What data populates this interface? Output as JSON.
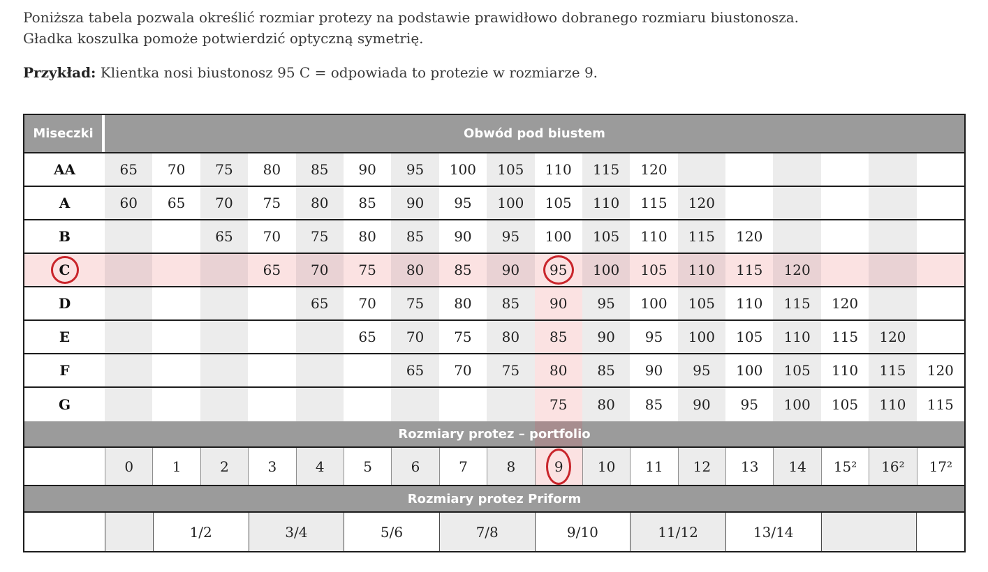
{
  "intro": {
    "line1": "Poniższa tabela pozwala określić rozmiar protezy na podstawie prawidłowo dobranego rozmiaru biustonosza.",
    "line2": "Gładka koszulka pomoże potwierdzić optyczną symetrię.",
    "example_label": "Przykład:",
    "example_text": " Klientka nosi biustonosz 95 C = odpowiada to protezie w rozmiarze 9."
  },
  "table": {
    "cup_header": "Miseczki",
    "band_header": "Obwód pod biustem",
    "columns": 18,
    "highlight_column_index": 9,
    "cup_rows": [
      {
        "cup": "AA",
        "cells": [
          "65",
          "70",
          "75",
          "80",
          "85",
          "90",
          "95",
          "100",
          "105",
          "110",
          "115",
          "120",
          "",
          "",
          "",
          "",
          "",
          ""
        ]
      },
      {
        "cup": "A",
        "cells": [
          "60",
          "65",
          "70",
          "75",
          "80",
          "85",
          "90",
          "95",
          "100",
          "105",
          "110",
          "115",
          "120",
          "",
          "",
          "",
          "",
          ""
        ]
      },
      {
        "cup": "B",
        "cells": [
          "",
          "",
          "65",
          "70",
          "75",
          "80",
          "85",
          "90",
          "95",
          "100",
          "105",
          "110",
          "115",
          "120",
          "",
          "",
          "",
          ""
        ]
      },
      {
        "cup": "C",
        "cells": [
          "",
          "",
          "",
          "65",
          "70",
          "75",
          "80",
          "85",
          "90",
          "95",
          "100",
          "105",
          "110",
          "115",
          "120",
          "",
          "",
          ""
        ],
        "row_highlight": true,
        "col_highlight": true,
        "cup_circled": true,
        "circled_cell_index": 9
      },
      {
        "cup": "D",
        "cells": [
          "",
          "",
          "",
          "",
          "65",
          "70",
          "75",
          "80",
          "85",
          "90",
          "95",
          "100",
          "105",
          "110",
          "115",
          "120",
          "",
          ""
        ],
        "col_highlight": true
      },
      {
        "cup": "E",
        "cells": [
          "",
          "",
          "",
          "",
          "",
          "65",
          "70",
          "75",
          "80",
          "85",
          "90",
          "95",
          "100",
          "105",
          "110",
          "115",
          "120",
          ""
        ],
        "col_highlight": true
      },
      {
        "cup": "F",
        "cells": [
          "",
          "",
          "",
          "",
          "",
          "",
          "65",
          "70",
          "75",
          "80",
          "85",
          "90",
          "95",
          "100",
          "105",
          "110",
          "115",
          "120"
        ],
        "col_highlight": true
      },
      {
        "cup": "G",
        "cells": [
          "",
          "",
          "",
          "",
          "",
          "",
          "",
          "",
          "",
          "75",
          "80",
          "85",
          "90",
          "95",
          "100",
          "105",
          "110",
          "115"
        ],
        "col_highlight": true
      }
    ],
    "portfolio_band": "Rozmiary protez – portfolio",
    "sizes": [
      "0",
      "1",
      "2",
      "3",
      "4",
      "5",
      "6",
      "7",
      "8",
      "9",
      "10",
      "11",
      "12",
      "13",
      "14",
      "15²",
      "16²",
      "17²"
    ],
    "circled_size_index": 9,
    "priform_band": "Rozmiary protez Priform",
    "priform_segments": [
      {
        "label": "",
        "span": 1
      },
      {
        "label": "1/2",
        "span": 2
      },
      {
        "label": "3/4",
        "span": 2
      },
      {
        "label": "5/6",
        "span": 2
      },
      {
        "label": "7/8",
        "span": 2
      },
      {
        "label": "9/10",
        "span": 2
      },
      {
        "label": "11/12",
        "span": 2
      },
      {
        "label": "13/14",
        "span": 2
      },
      {
        "label": "",
        "span": 2
      },
      {
        "label": "",
        "span": 1
      }
    ]
  },
  "colors": {
    "band_gray": "#9b9b9b",
    "column_stripe": "#ececec",
    "highlight_pink": "#fbe2e2",
    "highlight_pink_on_stripe": "#e9d2d4",
    "band_highlight_overlay": "#a78d8f",
    "circle_red": "#c9252b"
  }
}
